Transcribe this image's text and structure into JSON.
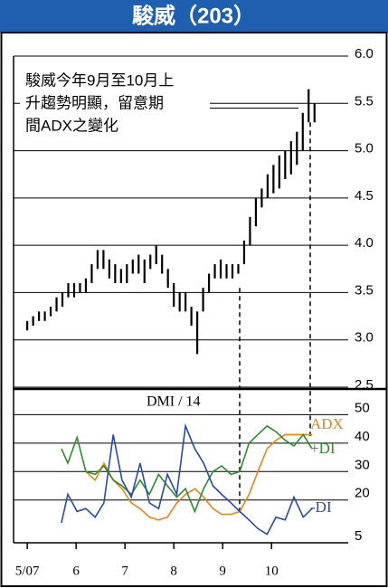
{
  "chart_data": [
    {
      "type": "hilo",
      "title": "駿威（203）",
      "annotation": [
        "駿威今年9月至10月上",
        "升趨勢明顯，留意期",
        "間ADX之變化"
      ],
      "x": [
        0,
        0.12,
        0.24,
        0.36,
        0.48,
        0.6,
        0.72,
        0.84,
        0.96,
        1.08,
        1.2,
        1.32,
        1.44,
        1.56,
        1.68,
        1.8,
        1.92,
        2.04,
        2.16,
        2.28,
        2.4,
        2.52,
        2.64,
        2.76,
        2.88,
        3.0,
        3.12,
        3.24,
        3.36,
        3.48,
        3.6,
        3.72,
        3.84,
        3.96,
        4.08,
        4.2,
        4.32,
        4.44,
        4.56,
        4.68,
        4.8,
        4.92,
        5.04,
        5.16,
        5.28,
        5.4,
        5.52,
        5.64,
        5.76,
        5.88
      ],
      "high": [
        3.2,
        3.25,
        3.3,
        3.3,
        3.35,
        3.45,
        3.5,
        3.6,
        3.6,
        3.6,
        3.65,
        3.8,
        3.95,
        3.95,
        3.85,
        3.8,
        3.75,
        3.8,
        3.85,
        3.9,
        3.85,
        3.9,
        4.0,
        3.9,
        3.75,
        3.6,
        3.5,
        3.5,
        3.35,
        3.3,
        3.55,
        3.7,
        3.8,
        3.85,
        3.8,
        3.8,
        3.8,
        4.05,
        4.3,
        4.5,
        4.6,
        4.75,
        4.85,
        4.95,
        5.0,
        5.1,
        5.2,
        5.4,
        5.65,
        5.5
      ],
      "low": [
        3.1,
        3.15,
        3.2,
        3.2,
        3.25,
        3.3,
        3.35,
        3.45,
        3.45,
        3.5,
        3.5,
        3.6,
        3.75,
        3.75,
        3.65,
        3.6,
        3.6,
        3.6,
        3.7,
        3.7,
        3.6,
        3.75,
        3.8,
        3.7,
        3.55,
        3.35,
        3.3,
        3.3,
        3.15,
        2.85,
        3.3,
        3.5,
        3.65,
        3.65,
        3.65,
        3.65,
        3.7,
        3.8,
        4.0,
        4.2,
        4.4,
        4.5,
        4.55,
        4.6,
        4.7,
        4.75,
        4.85,
        5.0,
        5.3,
        5.3
      ],
      "color": "#000000",
      "ylim": [
        2.5,
        6.0
      ],
      "yticks": [
        {
          "value": 2.5,
          "label": "2.5"
        },
        {
          "value": 3,
          "label": "3.0"
        },
        {
          "value": 3.5,
          "label": "3.5"
        },
        {
          "value": 4,
          "label": "4.0"
        },
        {
          "value": 4.5,
          "label": "4.5"
        },
        {
          "value": 5,
          "label": "5.0"
        },
        {
          "value": 5.5,
          "label": "5.5"
        },
        {
          "value": 6,
          "label": "6.0"
        }
      ],
      "grid": true
    },
    {
      "type": "line",
      "title": "DMI / 14",
      "x": [
        0.7,
        0.83,
        1.02,
        1.2,
        1.39,
        1.57,
        1.76,
        1.94,
        2.13,
        2.31,
        2.5,
        2.69,
        2.87,
        3.06,
        3.24,
        3.43,
        3.61,
        3.8,
        3.98,
        4.17,
        4.35,
        4.54,
        4.72,
        4.91,
        5.09,
        5.28,
        5.46,
        5.65,
        5.83
      ],
      "series": [
        {
          "name": "ADX",
          "color": "#e8841a",
          "values": [
            null,
            null,
            null,
            30,
            27,
            33,
            27,
            24,
            19,
            17,
            14,
            13,
            14,
            19,
            22,
            24,
            21,
            17,
            15,
            15,
            16,
            22,
            30,
            38,
            41,
            43,
            43,
            43,
            43
          ]
        },
        {
          "name": "+DI",
          "color": "#2e8b2e",
          "values": [
            38,
            33,
            42,
            30,
            29,
            32,
            27,
            25,
            22,
            27,
            22,
            29,
            25,
            21,
            24,
            16,
            24,
            30,
            32,
            29,
            30,
            40,
            43,
            46,
            44,
            41,
            39,
            43,
            38
          ]
        },
        {
          "name": "-DI",
          "color": "#2a4aa8",
          "values": [
            12,
            22,
            16,
            17,
            14,
            19,
            43,
            27,
            21,
            33,
            19,
            17,
            29,
            22,
            46,
            38,
            33,
            25,
            22,
            19,
            16,
            13,
            10,
            8,
            14,
            13,
            21,
            14,
            17
          ]
        }
      ],
      "xlim": [
        -0.28,
        6.57
      ],
      "xticks": [
        {
          "value": 0,
          "label": "5/07"
        },
        {
          "value": 1,
          "label": "6"
        },
        {
          "value": 2,
          "label": "7"
        },
        {
          "value": 3,
          "label": "8"
        },
        {
          "value": 4,
          "label": "9"
        },
        {
          "value": 5,
          "label": "10"
        }
      ],
      "ylim": [
        5,
        59
      ],
      "yticks": [
        5,
        20,
        30,
        40,
        50
      ],
      "grid": true
    }
  ]
}
